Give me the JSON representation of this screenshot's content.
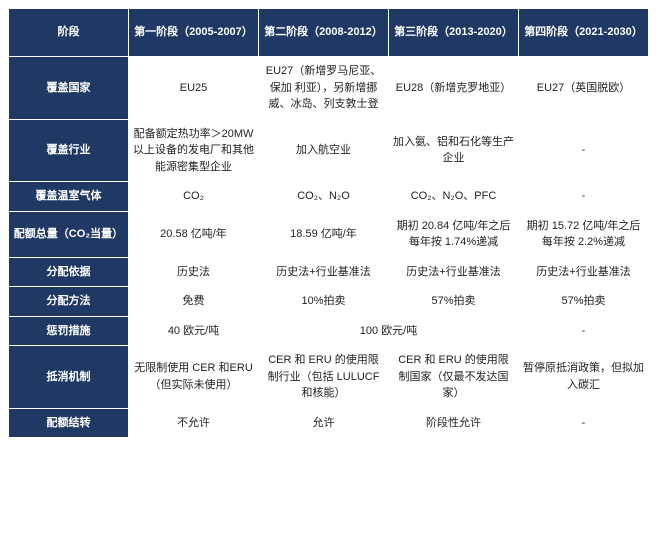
{
  "colors": {
    "header_bg": "#1f3864",
    "header_fg": "#ffffff",
    "cell_bg": "#ffffff",
    "cell_fg": "#222222",
    "border": "#ffffff"
  },
  "typography": {
    "font_family": "Microsoft YaHei, Arial, sans-serif",
    "header_fontsize_pt": 9,
    "cell_fontsize_pt": 9,
    "header_weight": 700,
    "cell_weight": 400
  },
  "column_headers": [
    "阶段",
    "第一阶段（2005-2007）",
    "第二阶段（2008-2012）",
    "第三阶段（2013-2020）",
    "第四阶段（2021-2030）"
  ],
  "rows": [
    {
      "label": "覆盖国家",
      "cells": [
        {
          "text": "EU25",
          "colspan": 1
        },
        {
          "text": "EU27（新增罗马尼亚、保加\n利亚），另新增挪威、冰岛、列支敦士登",
          "colspan": 1
        },
        {
          "text": "EU28（新增克罗地亚）",
          "colspan": 1
        },
        {
          "text": "EU27（英国脱欧）",
          "colspan": 1
        }
      ]
    },
    {
      "label": "覆盖行业",
      "cells": [
        {
          "text": "配备额定热功率＞20MW 以上设备的发电厂和其他能源密集型企业",
          "colspan": 1
        },
        {
          "text": "加入航空业",
          "colspan": 1
        },
        {
          "text": "加入氨、铝和石化等生产企业",
          "colspan": 1
        },
        {
          "text": "-",
          "colspan": 1
        }
      ]
    },
    {
      "label": "覆盖温室气体",
      "cells": [
        {
          "text": "CO₂",
          "colspan": 1
        },
        {
          "text": "CO₂、N₂O",
          "colspan": 1
        },
        {
          "text": "CO₂、N₂O、PFC",
          "colspan": 1
        },
        {
          "text": "-",
          "colspan": 1
        }
      ]
    },
    {
      "label": "配额总量（CO₂当量）",
      "cells": [
        {
          "text": "20.58 亿吨/年",
          "colspan": 1
        },
        {
          "text": "18.59 亿吨/年",
          "colspan": 1
        },
        {
          "text": "期初 20.84 亿吨/年之后每年按 1.74%递减",
          "colspan": 1
        },
        {
          "text": "期初 15.72 亿吨/年之后每年按 2.2%递减",
          "colspan": 1
        }
      ]
    },
    {
      "label": "分配依据",
      "cells": [
        {
          "text": "历史法",
          "colspan": 1
        },
        {
          "text": "历史法+行业基准法",
          "colspan": 1
        },
        {
          "text": "历史法+行业基准法",
          "colspan": 1
        },
        {
          "text": "历史法+行业基准法",
          "colspan": 1
        }
      ]
    },
    {
      "label": "分配方法",
      "cells": [
        {
          "text": "免费",
          "colspan": 1
        },
        {
          "text": "10%拍卖",
          "colspan": 1
        },
        {
          "text": "57%拍卖",
          "colspan": 1
        },
        {
          "text": "57%拍卖",
          "colspan": 1
        }
      ]
    },
    {
      "label": "惩罚措施",
      "cells": [
        {
          "text": "40 欧元/吨",
          "colspan": 1
        },
        {
          "text": "100 欧元/吨",
          "colspan": 2
        },
        {
          "text": "-",
          "colspan": 1
        }
      ]
    },
    {
      "label": "抵消机制",
      "cells": [
        {
          "text": "无限制使用 CER 和ERU（但实际未使用）",
          "colspan": 1
        },
        {
          "text": "CER 和 ERU 的使用限制行业（包括 LULUCF 和核能）",
          "colspan": 1
        },
        {
          "text": "CER 和 ERU 的使用限制国家（仅最不发达国家）",
          "colspan": 1
        },
        {
          "text": "暂停原抵消政策，但拟加入碳汇",
          "colspan": 1
        }
      ]
    },
    {
      "label": "配额结转",
      "cells": [
        {
          "text": "不允许",
          "colspan": 1
        },
        {
          "text": "允许",
          "colspan": 1
        },
        {
          "text": "阶段性允许",
          "colspan": 1
        },
        {
          "text": "-",
          "colspan": 1
        }
      ]
    }
  ]
}
